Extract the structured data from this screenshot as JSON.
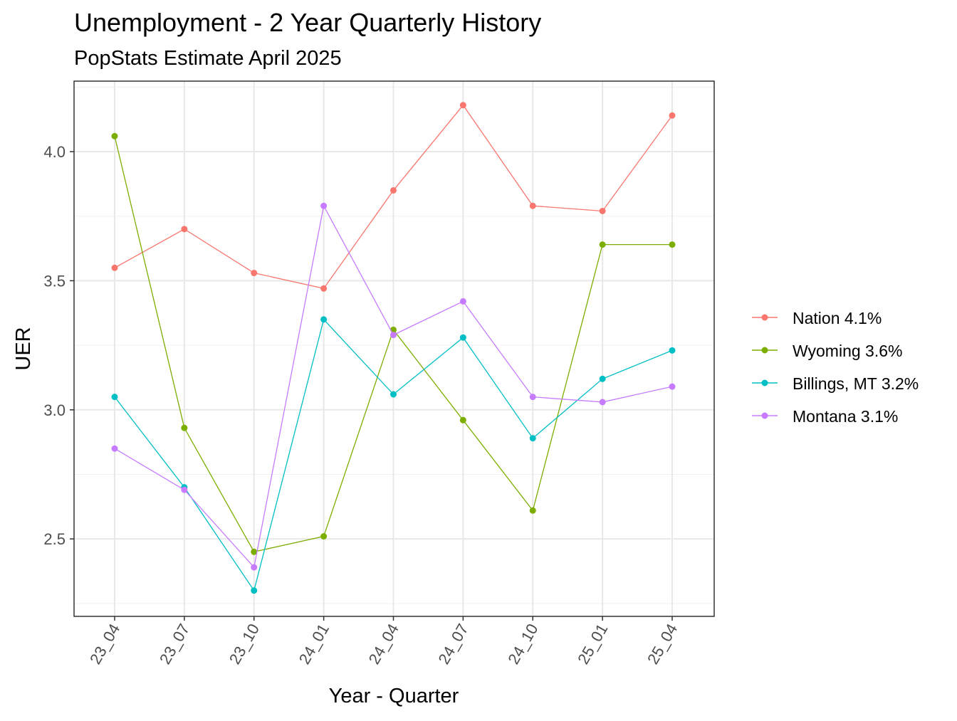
{
  "chart_data": {
    "type": "line",
    "title": "Unemployment - 2 Year Quarterly History",
    "subtitle": "PopStats Estimate April 2025",
    "xlabel": "Year - Quarter",
    "ylabel": "UER",
    "categories": [
      "23_04",
      "23_07",
      "23_10",
      "24_01",
      "24_04",
      "24_07",
      "24_10",
      "25_01",
      "25_04"
    ],
    "ylim": [
      2.2,
      4.273
    ],
    "yticks": [
      2.5,
      3.0,
      3.5,
      4.0
    ],
    "ytick_labels": [
      "2.5",
      "3.0",
      "3.5",
      "4.0"
    ],
    "grid": true,
    "legend_position": "right",
    "series": [
      {
        "name": "Nation 4.1%",
        "color": "#F8766D",
        "values": [
          3.55,
          3.7,
          3.53,
          3.47,
          3.85,
          4.18,
          3.79,
          3.77,
          4.14
        ]
      },
      {
        "name": "Wyoming 3.6%",
        "color": "#7CAE00",
        "values": [
          4.06,
          2.93,
          2.45,
          2.51,
          3.31,
          2.96,
          2.61,
          3.64,
          3.64
        ]
      },
      {
        "name": "Billings, MT 3.2%",
        "color": "#00BFC4",
        "values": [
          3.05,
          2.7,
          2.3,
          3.35,
          3.06,
          3.28,
          2.89,
          3.12,
          3.23
        ]
      },
      {
        "name": "Montana 3.1%",
        "color": "#C77CFF",
        "values": [
          2.85,
          2.69,
          2.39,
          3.79,
          3.29,
          3.42,
          3.05,
          3.03,
          3.09
        ]
      }
    ]
  }
}
